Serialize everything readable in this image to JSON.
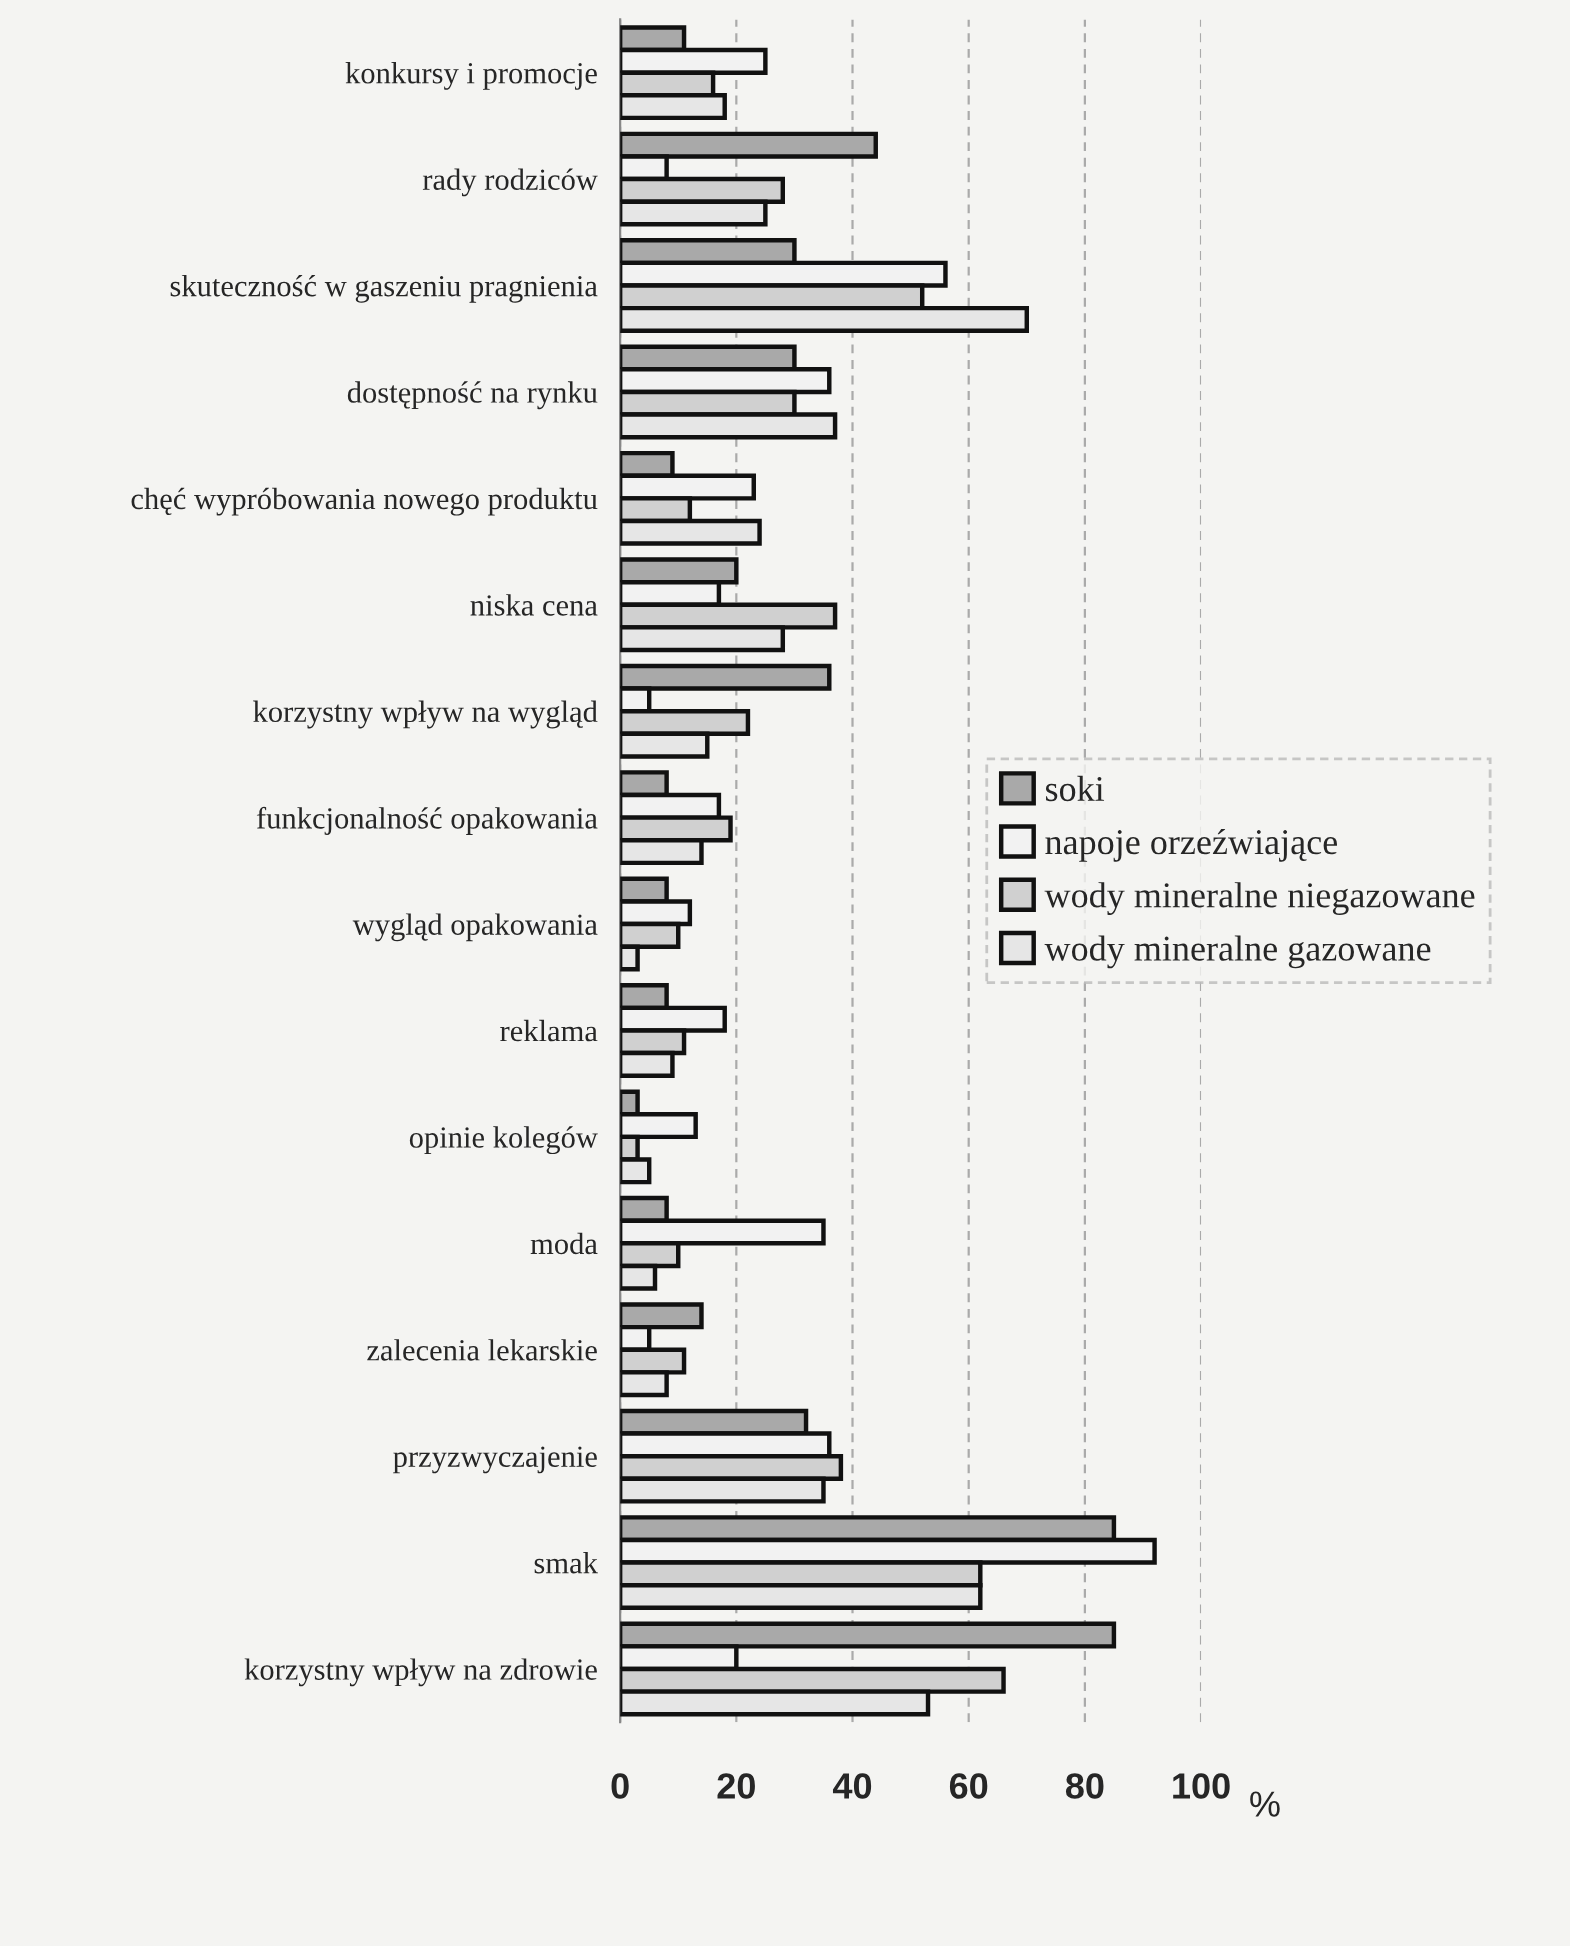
{
  "chart_data": {
    "type": "bar",
    "orientation": "horizontal",
    "xlabel": "%",
    "categories": [
      "konkursy i promocje",
      "rady rodziców",
      "skuteczność w gaszeniu pragnienia",
      "dostępność na rynku",
      "chęć wypróbowania nowego produktu",
      "niska cena",
      "korzystny wpływ na wygląd",
      "funkcjonalność opakowania",
      "wygląd opakowania",
      "reklama",
      "opinie kolegów",
      "moda",
      "zalecenia lekarskie",
      "przyzwyczajenie",
      "smak",
      "korzystny wpływ na zdrowie"
    ],
    "series": [
      {
        "name": "soki",
        "color": "#a9a9a9",
        "values": [
          11,
          44,
          30,
          30,
          9,
          20,
          36,
          8,
          8,
          8,
          3,
          8,
          14,
          32,
          85,
          85
        ]
      },
      {
        "name": "napoje orzeźwiające",
        "color": "#f2f2f2",
        "values": [
          25,
          8,
          56,
          36,
          23,
          17,
          5,
          17,
          12,
          18,
          13,
          35,
          5,
          36,
          92,
          20
        ]
      },
      {
        "name": "wody mineralne niegazowane",
        "color": "#d0d0d0",
        "values": [
          16,
          28,
          52,
          30,
          12,
          37,
          22,
          19,
          10,
          11,
          3,
          10,
          11,
          38,
          62,
          66
        ]
      },
      {
        "name": "wody mineralne gazowane",
        "color": "#e6e6e6",
        "values": [
          18,
          25,
          70,
          37,
          24,
          28,
          15,
          14,
          3,
          9,
          5,
          6,
          8,
          35,
          62,
          53
        ]
      }
    ],
    "xlim": [
      0,
      100
    ],
    "xticks": [
      0,
      20,
      40,
      60,
      80,
      100
    ],
    "grid": "x",
    "legend": "right"
  }
}
